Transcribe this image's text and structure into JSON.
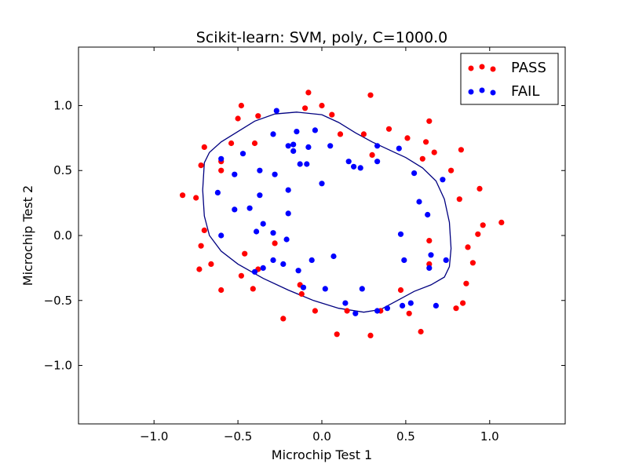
{
  "chart_data": {
    "type": "scatter",
    "title": "Scikit-learn: SVM, poly, C=1000.0",
    "xlabel": "Microchip Test 1",
    "ylabel": "Microchip Test 2",
    "xlim": [
      -1.45,
      1.45
    ],
    "ylim": [
      -1.45,
      1.45
    ],
    "xticks": [
      -1.0,
      -0.5,
      0.0,
      0.5,
      1.0
    ],
    "yticks": [
      -1.0,
      -0.5,
      0.0,
      0.5,
      1.0
    ],
    "xtick_labels": [
      "−1.0",
      "−0.5",
      "0.0",
      "0.5",
      "1.0"
    ],
    "ytick_labels": [
      "−1.0",
      "−0.5",
      "0.0",
      "0.5",
      "1.0"
    ],
    "grid": false,
    "legend": {
      "placement": "top-right",
      "entries": [
        "PASS",
        "FAIL"
      ]
    },
    "series": [
      {
        "name": "PASS",
        "color": "#ff0000",
        "points": [
          [
            -0.83,
            0.31
          ],
          [
            -0.75,
            0.29
          ],
          [
            -0.72,
            0.54
          ],
          [
            -0.7,
            0.68
          ],
          [
            -0.7,
            0.04
          ],
          [
            -0.72,
            -0.08
          ],
          [
            -0.73,
            -0.26
          ],
          [
            -0.66,
            -0.22
          ],
          [
            -0.6,
            -0.42
          ],
          [
            -0.6,
            0.5
          ],
          [
            -0.6,
            0.57
          ],
          [
            -0.54,
            0.71
          ],
          [
            -0.5,
            0.9
          ],
          [
            -0.48,
            1.0
          ],
          [
            -0.4,
            0.71
          ],
          [
            -0.38,
            0.92
          ],
          [
            -0.46,
            -0.14
          ],
          [
            -0.48,
            -0.31
          ],
          [
            -0.41,
            -0.41
          ],
          [
            -0.38,
            -0.26
          ],
          [
            -0.28,
            -0.06
          ],
          [
            -0.23,
            -0.64
          ],
          [
            -0.13,
            -0.38
          ],
          [
            -0.12,
            -0.45
          ],
          [
            -0.1,
            0.98
          ],
          [
            -0.08,
            1.1
          ],
          [
            0.0,
            1.0
          ],
          [
            0.06,
            0.93
          ],
          [
            0.11,
            0.78
          ],
          [
            -0.04,
            -0.58
          ],
          [
            0.09,
            -0.76
          ],
          [
            0.15,
            -0.58
          ],
          [
            0.29,
            1.08
          ],
          [
            0.3,
            0.62
          ],
          [
            0.29,
            -0.77
          ],
          [
            0.4,
            0.82
          ],
          [
            0.35,
            -0.58
          ],
          [
            0.51,
            0.75
          ],
          [
            0.52,
            -0.6
          ],
          [
            0.47,
            -0.42
          ],
          [
            0.62,
            0.72
          ],
          [
            0.64,
            0.88
          ],
          [
            0.67,
            0.64
          ],
          [
            0.6,
            0.59
          ],
          [
            0.64,
            -0.04
          ],
          [
            0.64,
            -0.22
          ],
          [
            0.59,
            -0.74
          ],
          [
            0.77,
            0.5
          ],
          [
            0.83,
            0.66
          ],
          [
            0.82,
            0.28
          ],
          [
            0.8,
            -0.56
          ],
          [
            0.84,
            -0.52
          ],
          [
            0.86,
            -0.37
          ],
          [
            0.87,
            -0.09
          ],
          [
            0.9,
            -0.21
          ],
          [
            0.93,
            0.01
          ],
          [
            0.94,
            0.36
          ],
          [
            0.96,
            0.08
          ],
          [
            1.07,
            0.1
          ],
          [
            0.25,
            0.78
          ]
        ]
      },
      {
        "name": "FAIL",
        "color": "#0000ff",
        "points": [
          [
            -0.27,
            0.96
          ],
          [
            -0.29,
            0.78
          ],
          [
            -0.2,
            0.69
          ],
          [
            -0.17,
            0.7
          ],
          [
            -0.17,
            0.65
          ],
          [
            -0.15,
            0.8
          ],
          [
            -0.08,
            0.68
          ],
          [
            -0.04,
            0.81
          ],
          [
            -0.13,
            0.55
          ],
          [
            -0.09,
            0.55
          ],
          [
            -0.6,
            0.59
          ],
          [
            -0.62,
            0.33
          ],
          [
            -0.52,
            0.47
          ],
          [
            -0.47,
            0.63
          ],
          [
            -0.37,
            0.5
          ],
          [
            -0.37,
            0.31
          ],
          [
            -0.35,
            0.09
          ],
          [
            -0.28,
            0.47
          ],
          [
            -0.2,
            0.35
          ],
          [
            -0.2,
            0.17
          ],
          [
            -0.52,
            0.2
          ],
          [
            -0.43,
            0.21
          ],
          [
            -0.39,
            0.03
          ],
          [
            -0.29,
            0.02
          ],
          [
            -0.21,
            -0.03
          ],
          [
            -0.6,
            0.0
          ],
          [
            -0.29,
            -0.19
          ],
          [
            -0.23,
            -0.22
          ],
          [
            -0.14,
            -0.27
          ],
          [
            -0.11,
            -0.4
          ],
          [
            -0.06,
            -0.19
          ],
          [
            0.0,
            0.4
          ],
          [
            0.05,
            0.69
          ],
          [
            0.16,
            0.57
          ],
          [
            0.19,
            0.53
          ],
          [
            0.23,
            0.52
          ],
          [
            0.33,
            0.69
          ],
          [
            0.33,
            0.57
          ],
          [
            0.46,
            0.67
          ],
          [
            0.55,
            0.48
          ],
          [
            0.58,
            0.26
          ],
          [
            0.63,
            0.16
          ],
          [
            0.72,
            0.43
          ],
          [
            0.47,
            0.01
          ],
          [
            0.49,
            -0.19
          ],
          [
            0.65,
            -0.15
          ],
          [
            0.74,
            -0.19
          ],
          [
            0.64,
            -0.25
          ],
          [
            0.53,
            -0.52
          ],
          [
            0.48,
            -0.54
          ],
          [
            0.68,
            -0.54
          ],
          [
            0.39,
            -0.56
          ],
          [
            0.33,
            -0.58
          ],
          [
            0.2,
            -0.6
          ],
          [
            0.14,
            -0.52
          ],
          [
            0.24,
            -0.41
          ],
          [
            0.02,
            -0.41
          ],
          [
            0.07,
            -0.16
          ],
          [
            -0.35,
            -0.25
          ],
          [
            -0.4,
            -0.28
          ]
        ]
      }
    ],
    "boundary": {
      "color": "#000080",
      "points": [
        [
          -0.7,
          0.56
        ],
        [
          -0.67,
          0.64
        ],
        [
          -0.6,
          0.72
        ],
        [
          -0.5,
          0.8
        ],
        [
          -0.4,
          0.88
        ],
        [
          -0.28,
          0.935
        ],
        [
          -0.15,
          0.95
        ],
        [
          0.0,
          0.93
        ],
        [
          0.1,
          0.87
        ],
        [
          0.2,
          0.79
        ],
        [
          0.3,
          0.72
        ],
        [
          0.4,
          0.66
        ],
        [
          0.5,
          0.6
        ],
        [
          0.6,
          0.52
        ],
        [
          0.68,
          0.42
        ],
        [
          0.73,
          0.28
        ],
        [
          0.76,
          0.1
        ],
        [
          0.77,
          -0.1
        ],
        [
          0.76,
          -0.24
        ],
        [
          0.73,
          -0.32
        ],
        [
          0.65,
          -0.38
        ],
        [
          0.55,
          -0.43
        ],
        [
          0.45,
          -0.5
        ],
        [
          0.35,
          -0.57
        ],
        [
          0.25,
          -0.59
        ],
        [
          0.1,
          -0.56
        ],
        [
          -0.05,
          -0.5
        ],
        [
          -0.2,
          -0.42
        ],
        [
          -0.35,
          -0.33
        ],
        [
          -0.5,
          -0.22
        ],
        [
          -0.6,
          -0.12
        ],
        [
          -0.67,
          0.0
        ],
        [
          -0.7,
          0.15
        ],
        [
          -0.71,
          0.35
        ],
        [
          -0.7,
          0.56
        ]
      ]
    }
  }
}
